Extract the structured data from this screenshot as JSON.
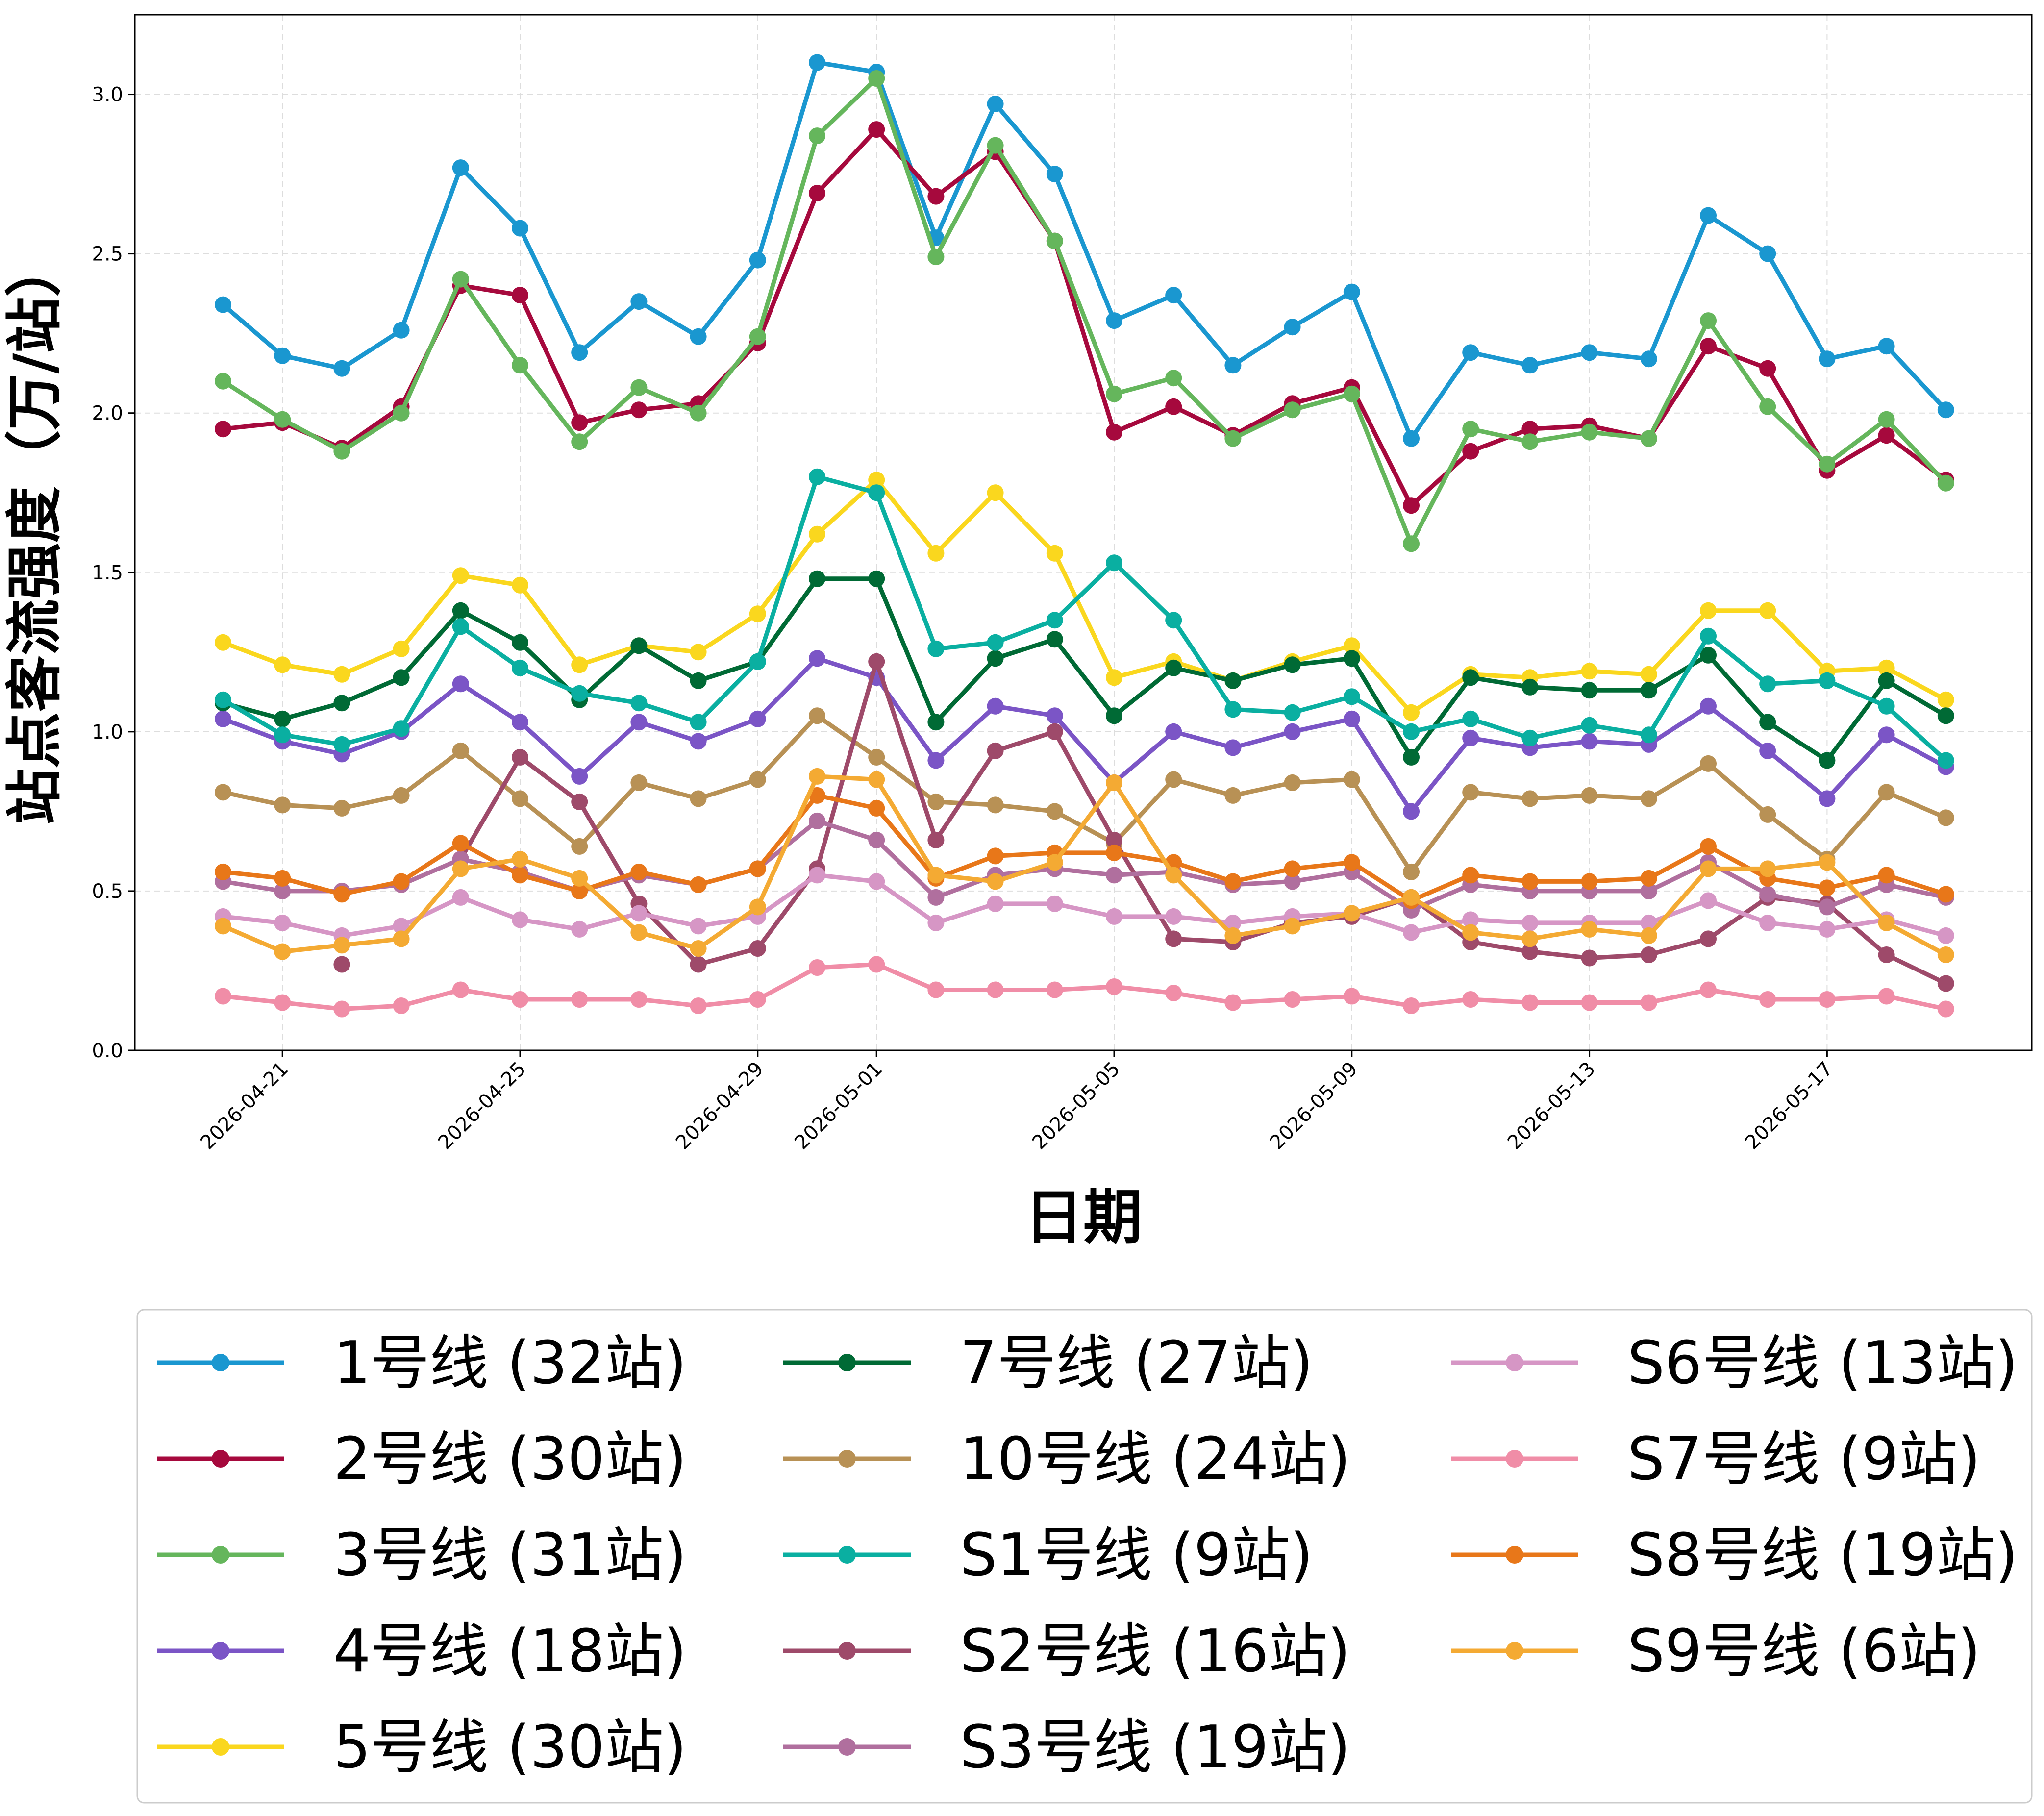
{
  "chart_data": {
    "type": "line",
    "title": "",
    "xlabel": "日期",
    "ylabel": "站点客流强度（万/站）",
    "ylim": [
      0,
      3.25
    ],
    "y_ticks": [
      0.0,
      0.5,
      1.0,
      1.5,
      2.0,
      2.5,
      3.0
    ],
    "y_tick_labels": [
      "0.0",
      "0.5",
      "1.0",
      "1.5",
      "2.0",
      "2.5",
      "3.0"
    ],
    "x": [
      "2026-04-20",
      "2026-04-21",
      "2026-04-22",
      "2026-04-23",
      "2026-04-24",
      "2026-04-25",
      "2026-04-26",
      "2026-04-27",
      "2026-04-28",
      "2026-04-29",
      "2026-04-30",
      "2026-05-01",
      "2026-05-02",
      "2026-05-03",
      "2026-05-04",
      "2026-05-05",
      "2026-05-06",
      "2026-05-07",
      "2026-05-08",
      "2026-05-09",
      "2026-05-10",
      "2026-05-11",
      "2026-05-12",
      "2026-05-13",
      "2026-05-14",
      "2026-05-15",
      "2026-05-16",
      "2026-05-17",
      "2026-05-18",
      "2026-05-19"
    ],
    "x_ticks": [
      "2026-04-21",
      "2026-04-25",
      "2026-04-29",
      "2026-05-01",
      "2026-05-05",
      "2026-05-09",
      "2026-05-13",
      "2026-05-17"
    ],
    "grid": true,
    "legend": {
      "placement": "bottom",
      "columns": 3
    },
    "series": [
      {
        "name": "1号线 (32站)",
        "color": "#1a97d0",
        "values": [
          2.34,
          2.18,
          2.14,
          2.26,
          2.77,
          2.58,
          2.19,
          2.35,
          2.24,
          2.48,
          3.1,
          3.07,
          2.55,
          2.97,
          2.75,
          2.29,
          2.37,
          2.15,
          2.27,
          2.38,
          1.92,
          2.19,
          2.15,
          2.19,
          2.17,
          2.62,
          2.5,
          2.17,
          2.21,
          2.01
        ]
      },
      {
        "name": "2号线 (30站)",
        "color": "#a6093d",
        "values": [
          1.95,
          1.97,
          1.89,
          2.02,
          2.4,
          2.37,
          1.97,
          2.01,
          2.03,
          2.22,
          2.69,
          2.89,
          2.68,
          2.82,
          2.54,
          1.94,
          2.02,
          1.93,
          2.03,
          2.08,
          1.71,
          1.88,
          1.95,
          1.96,
          1.92,
          2.21,
          2.14,
          1.82,
          1.93,
          1.79
        ]
      },
      {
        "name": "3号线 (31站)",
        "color": "#65b65c",
        "values": [
          2.1,
          1.98,
          1.88,
          2.0,
          2.42,
          2.15,
          1.91,
          2.08,
          2.0,
          2.24,
          2.87,
          3.05,
          2.49,
          2.84,
          2.54,
          2.06,
          2.11,
          1.92,
          2.01,
          2.06,
          1.59,
          1.95,
          1.91,
          1.94,
          1.92,
          2.29,
          2.02,
          1.84,
          1.98,
          1.78
        ]
      },
      {
        "name": "4号线 (18站)",
        "color": "#7b55c6",
        "values": [
          1.04,
          0.97,
          0.93,
          1.0,
          1.15,
          1.03,
          0.86,
          1.03,
          0.97,
          1.04,
          1.23,
          1.17,
          0.91,
          1.08,
          1.05,
          0.84,
          1.0,
          0.95,
          1.0,
          1.04,
          0.75,
          0.98,
          0.95,
          0.97,
          0.96,
          1.08,
          0.94,
          0.79,
          0.99,
          0.89
        ]
      },
      {
        "name": "5号线 (30站)",
        "color": "#fad71e",
        "values": [
          1.28,
          1.21,
          1.18,
          1.26,
          1.49,
          1.46,
          1.21,
          1.27,
          1.25,
          1.37,
          1.62,
          1.79,
          1.56,
          1.75,
          1.56,
          1.17,
          1.22,
          1.16,
          1.22,
          1.27,
          1.06,
          1.18,
          1.17,
          1.19,
          1.18,
          1.38,
          1.38,
          1.19,
          1.2,
          1.1
        ]
      },
      {
        "name": "7号线 (27站)",
        "color": "#006a35",
        "values": [
          1.09,
          1.04,
          1.09,
          1.17,
          1.38,
          1.28,
          1.1,
          1.27,
          1.16,
          1.22,
          1.48,
          1.48,
          1.03,
          1.23,
          1.29,
          1.05,
          1.2,
          1.16,
          1.21,
          1.23,
          0.92,
          1.17,
          1.14,
          1.13,
          1.13,
          1.24,
          1.03,
          0.91,
          1.16,
          1.05
        ]
      },
      {
        "name": "10号线 (24站)",
        "color": "#b89155",
        "values": [
          0.81,
          0.77,
          0.76,
          0.8,
          0.94,
          0.79,
          0.64,
          0.84,
          0.79,
          0.85,
          1.05,
          0.92,
          0.78,
          0.77,
          0.75,
          0.65,
          0.85,
          0.8,
          0.84,
          0.85,
          0.56,
          0.81,
          0.79,
          0.8,
          0.79,
          0.9,
          0.74,
          0.6,
          0.81,
          0.73
        ]
      },
      {
        "name": "S1号线 (9站)",
        "color": "#0aafa1",
        "values": [
          1.1,
          0.99,
          0.96,
          1.01,
          1.33,
          1.2,
          1.12,
          1.09,
          1.03,
          1.22,
          1.8,
          1.75,
          1.26,
          1.28,
          1.35,
          1.53,
          1.35,
          1.07,
          1.06,
          1.11,
          1.0,
          1.04,
          0.98,
          1.02,
          0.99,
          1.3,
          1.15,
          1.16,
          1.08,
          0.91
        ]
      },
      {
        "name": "S2号线 (16站)",
        "color": "#9e4a6a",
        "values": [
          null,
          null,
          0.27,
          null,
          0.6,
          0.92,
          0.78,
          0.46,
          0.27,
          0.32,
          0.57,
          1.22,
          0.66,
          0.94,
          1.0,
          0.66,
          0.35,
          0.34,
          0.4,
          0.42,
          0.48,
          0.34,
          0.31,
          0.29,
          0.3,
          0.35,
          0.48,
          0.46,
          0.3,
          0.21
        ]
      },
      {
        "name": "S3号线 (19站)",
        "color": "#b06f9e",
        "values": [
          0.53,
          0.5,
          0.5,
          0.52,
          0.6,
          0.56,
          0.5,
          0.55,
          0.52,
          0.57,
          0.72,
          0.66,
          0.48,
          0.55,
          0.57,
          0.55,
          0.56,
          0.52,
          0.53,
          0.56,
          0.44,
          0.52,
          0.5,
          0.5,
          0.5,
          0.59,
          0.49,
          0.45,
          0.52,
          0.48
        ]
      },
      {
        "name": "S6号线 (13站)",
        "color": "#d696c5",
        "values": [
          0.42,
          0.4,
          0.36,
          0.39,
          0.48,
          0.41,
          0.38,
          0.43,
          0.39,
          0.42,
          0.55,
          0.53,
          0.4,
          0.46,
          0.46,
          0.42,
          0.42,
          0.4,
          0.42,
          0.43,
          0.37,
          0.41,
          0.4,
          0.4,
          0.4,
          0.47,
          0.4,
          0.38,
          0.41,
          0.36
        ]
      },
      {
        "name": "S7号线 (9站)",
        "color": "#f08da7",
        "values": [
          0.17,
          0.15,
          0.13,
          0.14,
          0.19,
          0.16,
          0.16,
          0.16,
          0.14,
          0.16,
          0.26,
          0.27,
          0.19,
          0.19,
          0.19,
          0.2,
          0.18,
          0.15,
          0.16,
          0.17,
          0.14,
          0.16,
          0.15,
          0.15,
          0.15,
          0.19,
          0.16,
          0.16,
          0.17,
          0.13
        ]
      },
      {
        "name": "S8号线 (19站)",
        "color": "#e87719",
        "values": [
          0.56,
          0.54,
          0.49,
          0.53,
          0.65,
          0.55,
          0.5,
          0.56,
          0.52,
          0.57,
          0.8,
          0.76,
          0.54,
          0.61,
          0.62,
          0.62,
          0.59,
          0.53,
          0.57,
          0.59,
          0.47,
          0.55,
          0.53,
          0.53,
          0.54,
          0.64,
          0.54,
          0.51,
          0.55,
          0.49
        ]
      },
      {
        "name": "S9号线 (6站)",
        "color": "#f4aa33",
        "values": [
          0.39,
          0.31,
          0.33,
          0.35,
          0.57,
          0.6,
          0.54,
          0.37,
          0.32,
          0.45,
          0.86,
          0.85,
          0.55,
          0.53,
          0.59,
          0.84,
          0.55,
          0.36,
          0.39,
          0.43,
          0.48,
          0.37,
          0.35,
          0.38,
          0.36,
          0.57,
          0.57,
          0.59,
          0.4,
          0.3
        ]
      }
    ]
  }
}
